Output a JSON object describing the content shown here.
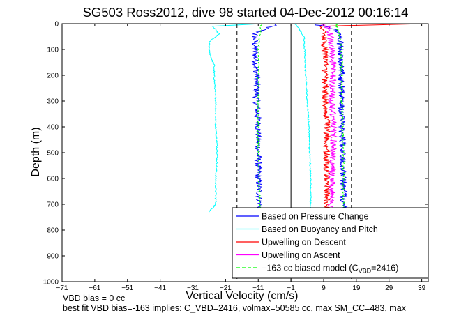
{
  "chart_data": {
    "type": "line",
    "title": "SG503 Ross2012, dive 98 started 04-Dec-2012 00:16:14",
    "xlabel": "Vertical Velocity (cm/s)",
    "ylabel": "Depth (m)",
    "xlim": [
      -71,
      41
    ],
    "ylim": [
      1000,
      0
    ],
    "y_reversed": true,
    "grid": false,
    "legend_position": "bottom-right",
    "xticks": [
      "-71",
      "-61",
      "-51",
      "-41",
      "-31",
      "-21",
      "-11",
      "-1",
      "9",
      "19",
      "29",
      "39"
    ],
    "yticks": [
      "0",
      "100",
      "200",
      "300",
      "400",
      "500",
      "600",
      "700",
      "800",
      "900",
      "1000"
    ],
    "reference_lines": [
      {
        "x": -1,
        "style": "solid",
        "color": "#000000"
      },
      {
        "x": -17.5,
        "style": "dashed",
        "color": "#000000"
      },
      {
        "x": 17.5,
        "style": "dashed",
        "color": "#000000"
      }
    ],
    "series": [
      {
        "name": "Based on Pressure Change",
        "color": "#0000ff",
        "noise": 1.0,
        "segments": [
          {
            "label": "descent",
            "depth": [
              0,
              20,
              40,
              100,
              200,
              300,
              400,
              500,
              600,
              700,
              730
            ],
            "velocity": [
              -5,
              -9,
              -12,
              -12,
              -11.5,
              -11.5,
              -11,
              -11,
              -11,
              -10.5,
              -10.5
            ]
          },
          {
            "label": "ascent",
            "depth": [
              730,
              700,
              600,
              500,
              400,
              300,
              200,
              100,
              40,
              20,
              0
            ],
            "velocity": [
              15,
              15,
              15,
              15,
              14.5,
              14.5,
              14.5,
              14,
              14,
              12,
              6
            ]
          }
        ]
      },
      {
        "name": "Based on Buoyancy and Pitch",
        "color": "#00ffff",
        "noise": 0.2,
        "segments": [
          {
            "label": "descent",
            "depth": [
              0,
              10,
              40,
              70,
              110,
              160,
              200,
              300,
              400,
              500,
              600,
              700,
              730
            ],
            "velocity": [
              -10,
              -25,
              -23,
              -26,
              -26,
              -24.5,
              -24.5,
              -24,
              -24,
              -23.5,
              -24,
              -24,
              -26
            ]
          },
          {
            "label": "ascent",
            "depth": [
              730,
              600,
              400,
              200,
              50,
              10,
              0
            ],
            "velocity": [
              5,
              5,
              4.5,
              3.5,
              3,
              1,
              0
            ]
          }
        ]
      },
      {
        "name": "Upwelling on Descent",
        "color": "#ff0000",
        "noise": 1.0,
        "segments": [
          {
            "label": "ascent-upwelling",
            "depth": [
              730,
              700,
              600,
              500,
              400,
              300,
              200,
              100,
              40,
              10,
              0
            ],
            "velocity": [
              10,
              10,
              10,
              10,
              10,
              9.5,
              9.5,
              9.5,
              9,
              8,
              40
            ]
          }
        ]
      },
      {
        "name": "Upwelling on Ascent",
        "color": "#ff00ff",
        "noise": 1.0,
        "segments": [
          {
            "label": "ascent-upwelling",
            "depth": [
              730,
              700,
              600,
              500,
              400,
              300,
              200,
              100,
              40,
              10,
              0
            ],
            "velocity": [
              11,
              11.5,
              11.5,
              12,
              12,
              11.5,
              12,
              11.5,
              11,
              10,
              9
            ]
          }
        ]
      },
      {
        "name": "-163 cc biased model (C_VBD=2416)",
        "color": "#00ff00",
        "style": "dashed",
        "noise": 0.3,
        "segments": [
          {
            "label": "descent",
            "depth": [
              0,
              100,
              300,
              500,
              700,
              730
            ],
            "velocity": [
              -10,
              -11,
              -11,
              -11,
              -10.5,
              -10.5
            ]
          },
          {
            "label": "ascent",
            "depth": [
              730,
              500,
              300,
              100,
              0
            ],
            "velocity": [
              15,
              15,
              14.5,
              14.5,
              13
            ]
          }
        ]
      }
    ]
  },
  "legend": {
    "items": [
      {
        "text": "Based on Pressure Change",
        "color": "#0000ff",
        "dashed": false
      },
      {
        "text": "Based on Buoyancy and Pitch",
        "color": "#00ffff",
        "dashed": false
      },
      {
        "text": "Upwelling on Descent",
        "color": "#ff0000",
        "dashed": false
      },
      {
        "text": "Upwelling on Ascent",
        "color": "#ff00ff",
        "dashed": false
      },
      {
        "text": "−163 cc biased model (C",
        "sub": "VBD",
        "tail": "=2416)",
        "color": "#00ff00",
        "dashed": true
      }
    ]
  },
  "footnotes": {
    "line1": "VBD bias = 0 cc",
    "line2": "best fit VBD bias=-163 implies: C_VBD=2416, volmax=50585 cc, max SM_CC=483, max"
  }
}
